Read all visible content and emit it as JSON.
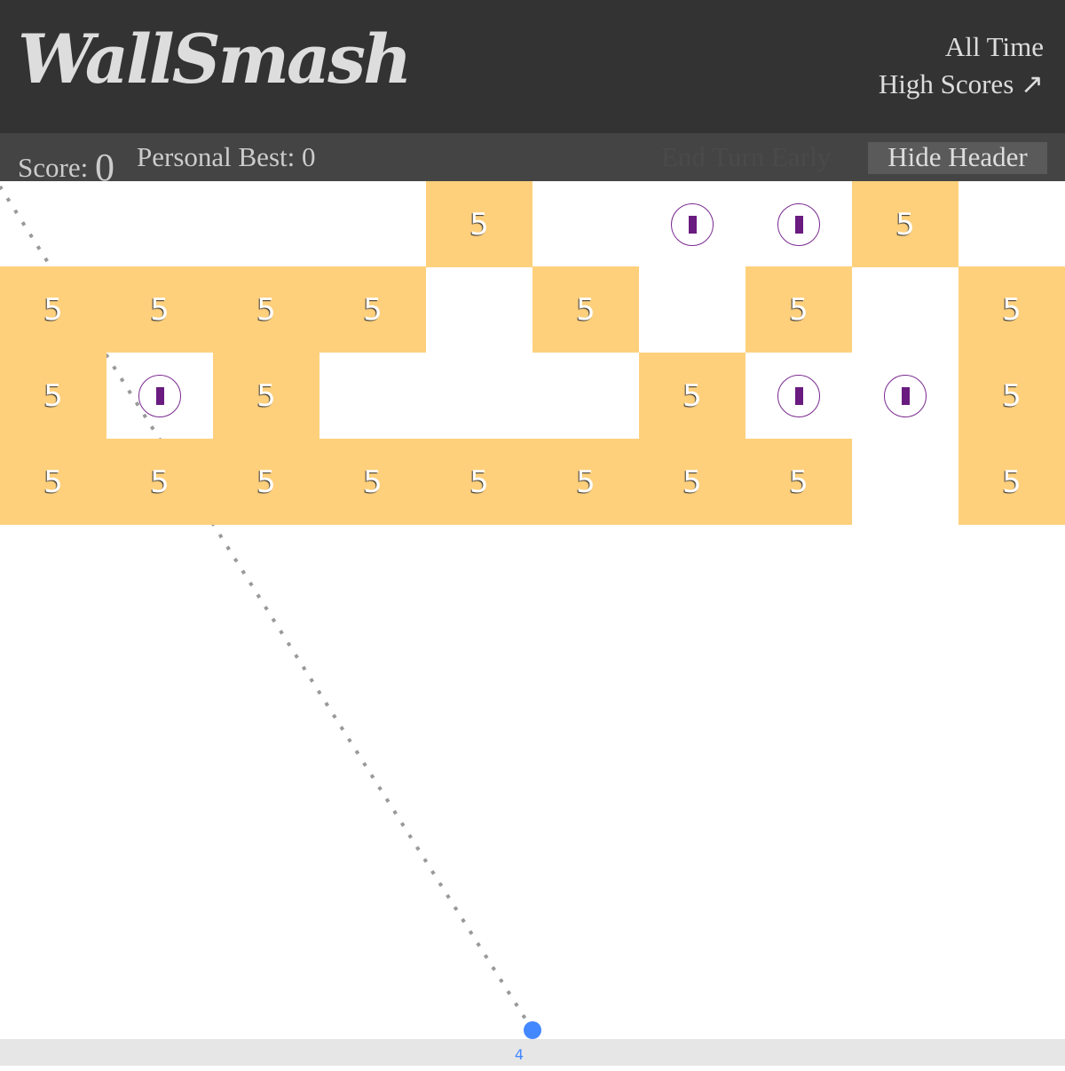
{
  "header": {
    "logo": "WallSmash",
    "high_scores_line1": "All Time",
    "high_scores_line2": "High Scores",
    "high_scores_icon": "arrow-up-right-icon"
  },
  "scorebar": {
    "score_label": "Score:",
    "score": "0",
    "personal_best_label": "Personal Best:",
    "personal_best": "0",
    "end_turn": "End Turn Early",
    "hide_header": "Hide Header"
  },
  "colors": {
    "brick": "#fed07c",
    "ball": "#4488ff",
    "powerup": "#6a1b80"
  },
  "grid": [
    "....5.PP5.",
    "5555.5.5.5",
    "5P5...5PP5",
    "55555555.5"
  ],
  "brick_value": "5",
  "ball_count": "4"
}
